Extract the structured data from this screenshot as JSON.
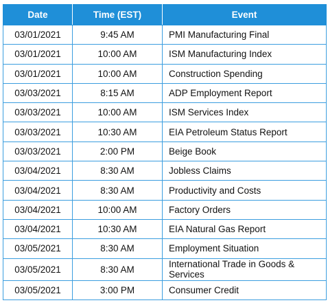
{
  "headers": {
    "date": "Date",
    "time": "Time (EST)",
    "event": "Event"
  },
  "rows": [
    {
      "date": "03/01/2021",
      "time": "9:45 AM",
      "event": "PMI Manufacturing Final"
    },
    {
      "date": "03/01/2021",
      "time": "10:00 AM",
      "event": "ISM Manufacturing Index"
    },
    {
      "date": "03/01/2021",
      "time": "10:00 AM",
      "event": "Construction Spending"
    },
    {
      "date": "03/03/2021",
      "time": "8:15 AM",
      "event": "ADP Employment Report"
    },
    {
      "date": "03/03/2021",
      "time": "10:00 AM",
      "event": "ISM Services Index"
    },
    {
      "date": "03/03/2021",
      "time": "10:30 AM",
      "event": "EIA Petroleum Status Report"
    },
    {
      "date": "03/03/2021",
      "time": "2:00 PM",
      "event": "Beige Book"
    },
    {
      "date": "03/04/2021",
      "time": "8:30 AM",
      "event": "Jobless Claims"
    },
    {
      "date": "03/04/2021",
      "time": "8:30 AM",
      "event": "Productivity and Costs"
    },
    {
      "date": "03/04/2021",
      "time": "10:00 AM",
      "event": "Factory Orders"
    },
    {
      "date": "03/04/2021",
      "time": "10:30 AM",
      "event": "EIA Natural Gas Report"
    },
    {
      "date": "03/05/2021",
      "time": "8:30 AM",
      "event": "Employment Situation"
    },
    {
      "date": "03/05/2021",
      "time": "8:30 AM",
      "event": "International Trade in Goods & Services"
    },
    {
      "date": "03/05/2021",
      "time": "3:00 PM",
      "event": "Consumer Credit"
    }
  ],
  "colors": {
    "header_bg": "#1f8fd8",
    "header_text": "#ffffff",
    "border": "#3a9ddf"
  }
}
